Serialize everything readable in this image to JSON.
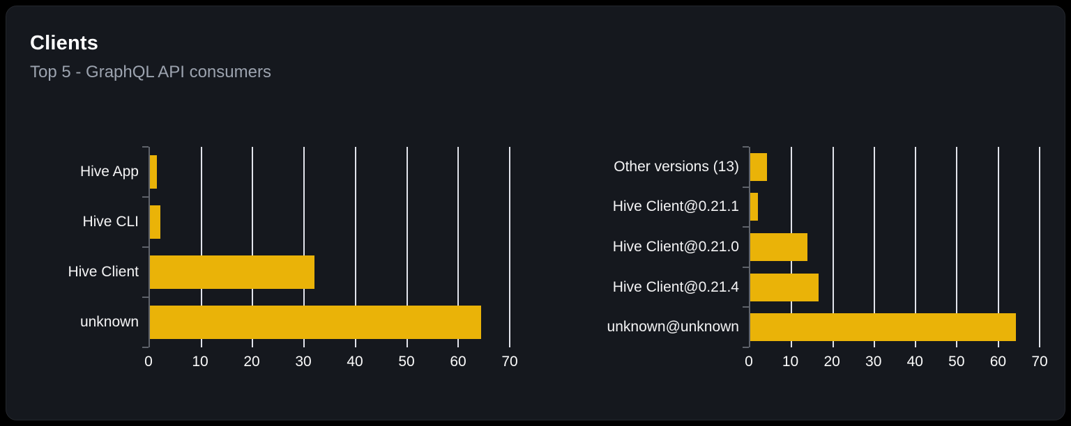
{
  "card": {
    "title": "Clients",
    "subtitle": "Top 5 - GraphQL API consumers"
  },
  "colors": {
    "page_background": "#000000",
    "card_background": "#15181e",
    "bar": "#eab308",
    "gridline": "#e2e4ec",
    "axis": "#5f636b",
    "category_text": "#f4f4f5",
    "tick_text": "#fafafa",
    "subtitle_text": "#9ca3af"
  },
  "chart_data": [
    {
      "type": "bar",
      "orientation": "horizontal",
      "title": "",
      "xlabel": "",
      "ylabel": "",
      "categories": [
        "Hive App",
        "Hive CLI",
        "Hive Client",
        "unknown"
      ],
      "values": [
        1.3,
        2.0,
        32.0,
        64.4
      ],
      "xlim": [
        0,
        70
      ],
      "ticks": [
        0,
        10,
        20,
        30,
        40,
        50,
        60,
        70
      ],
      "grid": "vertical",
      "legend": false
    },
    {
      "type": "bar",
      "orientation": "horizontal",
      "title": "",
      "xlabel": "",
      "ylabel": "",
      "categories": [
        "Other versions (13)",
        "Hive Client@0.21.1",
        "Hive Client@0.21.0",
        "Hive Client@0.21.4",
        "unknown@unknown"
      ],
      "values": [
        4.0,
        1.8,
        13.8,
        16.6,
        64.3
      ],
      "xlim": [
        0,
        70
      ],
      "ticks": [
        0,
        10,
        20,
        30,
        40,
        50,
        60,
        70
      ],
      "grid": "vertical",
      "legend": false
    }
  ]
}
